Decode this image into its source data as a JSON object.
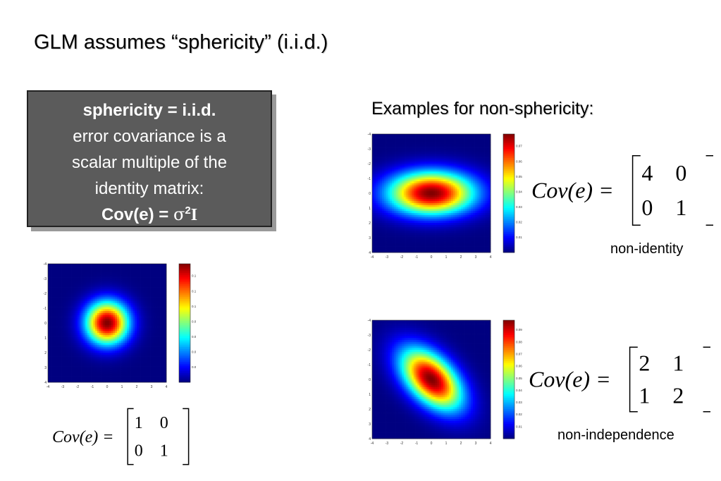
{
  "title": "GLM assumes “sphericity” (i.i.d.)",
  "box": {
    "heading": "sphericity = i.i.d.",
    "line1": "error covariance is a",
    "line2": "scalar multiple of the",
    "line3": "identity matrix:",
    "formula_prefix": "Cov(e) = ",
    "sigma": "σ",
    "exponent": "2",
    "identity": "I"
  },
  "examples_heading": "Examples for non-sphericity:",
  "formula_lhs": "Cov(e) =",
  "plots": [
    {
      "id": "spherical",
      "matrix": [
        [
          1,
          0
        ],
        [
          0,
          1
        ]
      ],
      "caption": "",
      "axis_ticks": [
        "-4",
        "-3",
        "-2",
        "-1",
        "0",
        "1",
        "2",
        "3",
        "4"
      ],
      "colorbar_ticks": [
        "0.14",
        "0.12",
        "0.1",
        "0.08",
        "0.06",
        "0.04",
        "0.02"
      ]
    },
    {
      "id": "non-identity",
      "matrix": [
        [
          4,
          0
        ],
        [
          0,
          1
        ]
      ],
      "caption": "non-identity",
      "axis_ticks": [
        "-4",
        "-3",
        "-2",
        "-1",
        "0",
        "1",
        "2",
        "3",
        "4"
      ],
      "colorbar_ticks": [
        "0.07",
        "0.06",
        "0.05",
        "0.04",
        "0.03",
        "0.02",
        "0.01"
      ]
    },
    {
      "id": "non-independence",
      "matrix": [
        [
          2,
          1
        ],
        [
          1,
          2
        ]
      ],
      "caption": "non-independence",
      "axis_ticks": [
        "-4",
        "-3",
        "-2",
        "-1",
        "0",
        "1",
        "2",
        "3",
        "4"
      ],
      "colorbar_ticks": [
        "0.09",
        "0.08",
        "0.07",
        "0.06",
        "0.05",
        "0.04",
        "0.03",
        "0.02",
        "0.01"
      ]
    }
  ],
  "colors": {
    "box_background": "#5b5b5b",
    "colormap": "jet"
  }
}
